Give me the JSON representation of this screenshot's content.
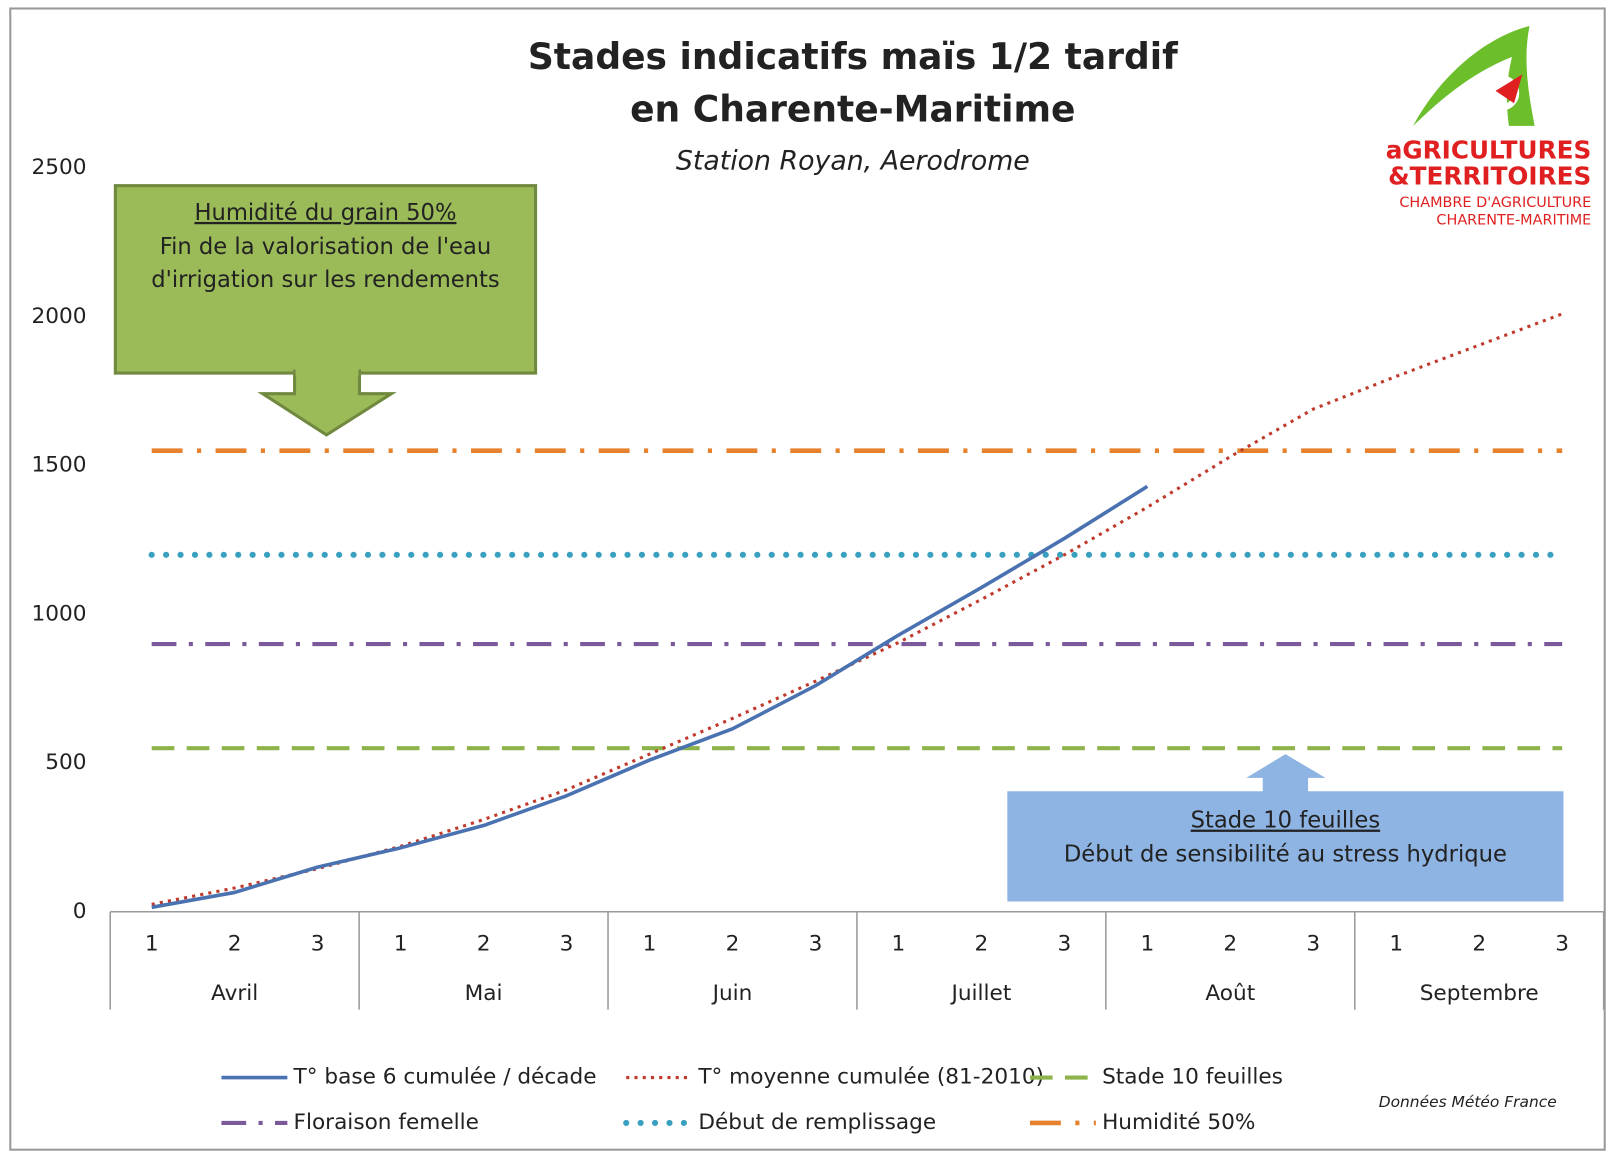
{
  "chart_data": {
    "type": "line",
    "title": "Stades indicatifs maïs 1/2 tardif",
    "title_line2": "en Charente-Maritime",
    "subtitle": "Station Royan, Aerodrome",
    "categories": [
      "1",
      "2",
      "3",
      "1",
      "2",
      "3",
      "1",
      "2",
      "3",
      "1",
      "2",
      "3",
      "1",
      "2",
      "3",
      "1",
      "2",
      "3"
    ],
    "category_groups": [
      "Avril",
      "Mai",
      "Juin",
      "Juillet",
      "Août",
      "Septembre"
    ],
    "ylim": [
      0,
      2500
    ],
    "yticks": [
      0,
      500,
      1000,
      1500,
      2000,
      2500
    ],
    "grid": false,
    "series": [
      {
        "name": "T° base 6 cumulée / décade",
        "color": "#4a72b0",
        "style": "solid",
        "values": [
          15,
          65,
          150,
          215,
          290,
          390,
          510,
          615,
          760,
          930,
          1090,
          1255,
          1430,
          null,
          null,
          null,
          null,
          null
        ]
      },
      {
        "name": "T° moyenne cumulée (81-2010)",
        "color": "#c0392b",
        "style": "dotted",
        "values": [
          25,
          80,
          145,
          220,
          310,
          410,
          530,
          650,
          775,
          905,
          1050,
          1200,
          1360,
          1530,
          1690,
          1800,
          1905,
          2010
        ]
      },
      {
        "name": "Stade 10 feuilles",
        "color": "#8db34a",
        "style": "dashed",
        "values": [
          550,
          550,
          550,
          550,
          550,
          550,
          550,
          550,
          550,
          550,
          550,
          550,
          550,
          550,
          550,
          550,
          550,
          550
        ]
      },
      {
        "name": "Floraison femelle",
        "color": "#7a5a9a",
        "style": "dash-dot",
        "values": [
          900,
          900,
          900,
          900,
          900,
          900,
          900,
          900,
          900,
          900,
          900,
          900,
          900,
          900,
          900,
          900,
          900,
          900
        ]
      },
      {
        "name": "Début de remplissage",
        "color": "#3aa0c0",
        "style": "round-dotted",
        "values": [
          1200,
          1200,
          1200,
          1200,
          1200,
          1200,
          1200,
          1200,
          1200,
          1200,
          1200,
          1200,
          1200,
          1200,
          1200,
          1200,
          1200,
          1200
        ]
      },
      {
        "name": "Humidité 50%",
        "color": "#e6822e",
        "style": "dash-dot-dot",
        "values": [
          1550,
          1550,
          1550,
          1550,
          1550,
          1550,
          1550,
          1550,
          1550,
          1550,
          1550,
          1550,
          1550,
          1550,
          1550,
          1550,
          1550,
          1550
        ]
      }
    ],
    "annotations": [
      {
        "lines": [
          "Humidité du grain 50%",
          "Fin de la valorisation de l'eau",
          "d'irrigation sur les rendements"
        ]
      },
      {
        "lines": [
          "Stade 10 feuilles",
          "Début de sensibilité au stress hydrique"
        ]
      }
    ],
    "source": "Données Météo France",
    "logo": [
      "aGRICULTURES",
      "&TERRITOIRES",
      "CHAMBRE D'AGRICULTURE",
      "CHARENTE-MARITIME"
    ]
  }
}
